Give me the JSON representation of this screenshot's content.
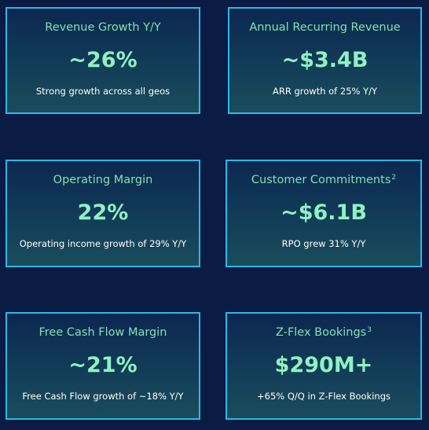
{
  "cards": [
    {
      "title": "Revenue Growth Y/Y",
      "value": "~26%",
      "subtitle": "Strong growth across all geos"
    },
    {
      "title": "Annual Recurring Revenue",
      "value": "~$3.4B",
      "subtitle": "ARR growth of 25% Y/Y"
    },
    {
      "title": "Operating Margin",
      "value": "22%",
      "subtitle": "Operating income growth of 29% Y/Y"
    },
    {
      "title": "Customer Commitments",
      "note": "2",
      "value": "~$6.1B",
      "subtitle": "RPO grew 31% Y/Y"
    },
    {
      "title": "Free Cash Flow Margin",
      "value": "~21%",
      "subtitle": "Free Cash Flow growth of ~18% Y/Y"
    },
    {
      "title": "Z-Flex Bookings",
      "note": "3",
      "value": "$290M+",
      "subtitle": "+65% Q/Q in Z-Flex Bookings"
    }
  ]
}
